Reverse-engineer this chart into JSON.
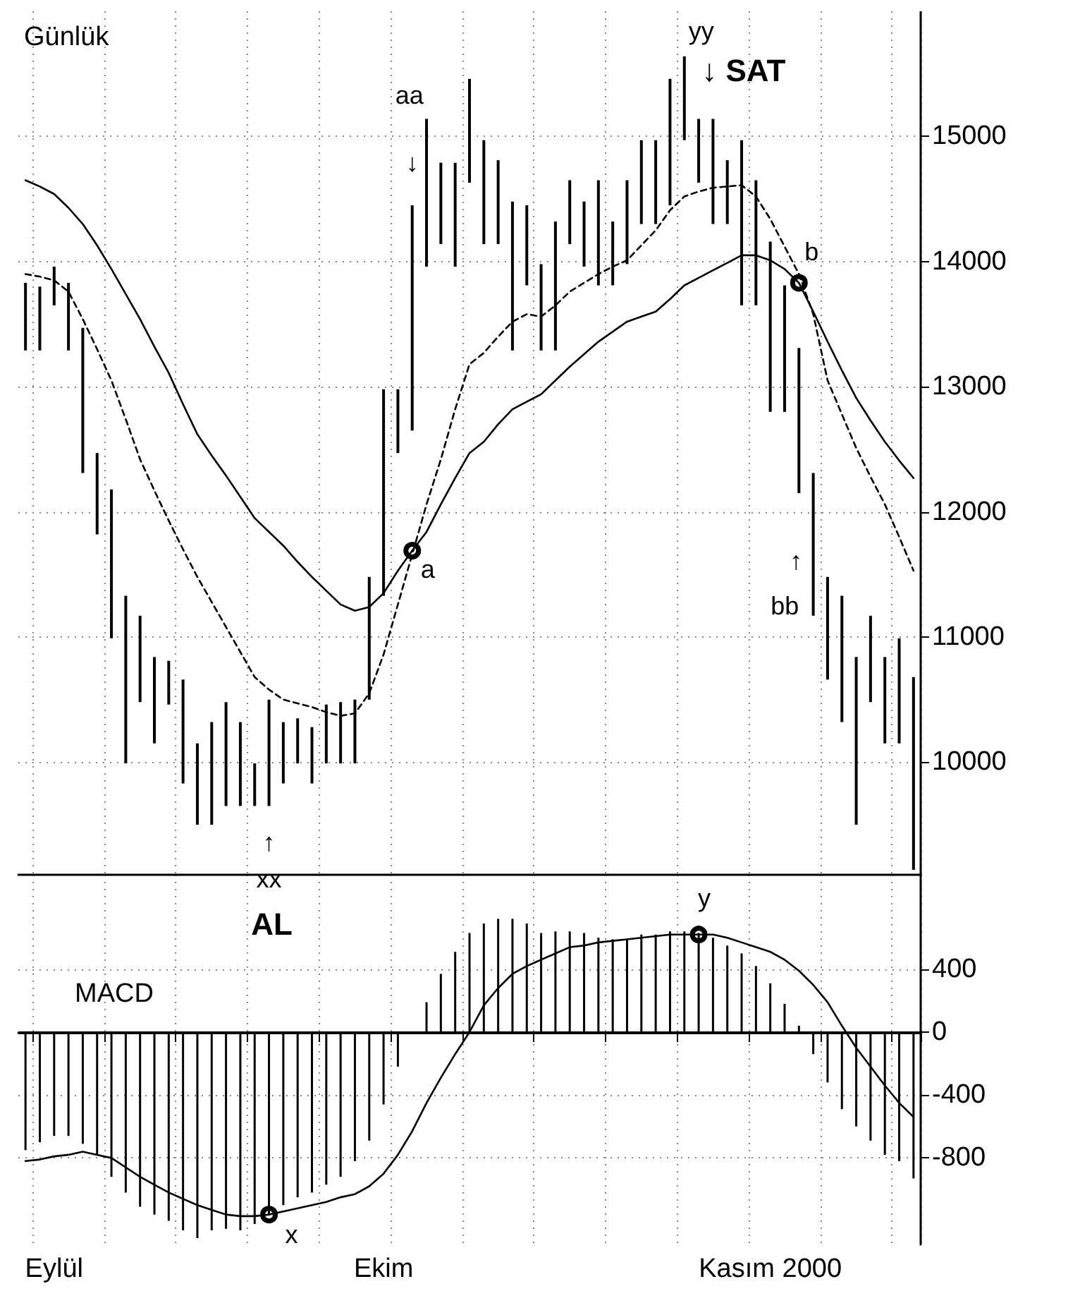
{
  "chart_data": [
    {
      "type": "bar",
      "title": "Günlük",
      "categories": [
        null,
        null,
        null,
        null,
        null,
        null,
        null,
        null,
        null,
        null,
        null,
        null,
        null,
        null,
        null,
        null,
        null,
        null,
        null,
        null,
        null,
        null,
        null,
        null,
        null,
        null,
        null,
        null,
        null,
        null,
        null,
        null,
        null,
        null,
        null,
        null,
        null,
        null,
        null,
        null,
        null,
        null,
        null,
        null,
        null,
        null,
        null,
        null,
        null,
        null,
        null,
        null,
        null,
        null,
        null,
        null,
        null,
        null,
        null,
        null,
        null,
        null,
        null
      ],
      "series": [
        {
          "color": "#000000",
          "base": [
            13290,
            13290,
            13650,
            13290,
            12310,
            11820,
            10990,
            9990,
            10480,
            10150,
            10460,
            9830,
            9500,
            9500,
            9650,
            9650,
            9650,
            9650,
            9830,
            9990,
            9830,
            9990,
            9990,
            9990,
            10500,
            11330,
            12470,
            12650,
            13960,
            14140,
            13960,
            14630,
            14140,
            14140,
            13290,
            13810,
            13290,
            13290,
            14140,
            13960,
            13810,
            13810,
            13980,
            14300,
            14300,
            14450,
            14970,
            14630,
            14300,
            14300,
            13650,
            13650,
            12800,
            12800,
            12150,
            11170,
            10660,
            10320,
            9500,
            10480,
            10150,
            10150,
            9140
          ],
          "values": [
            540,
            510,
            310,
            540,
            1160,
            650,
            1190,
            1340,
            690,
            690,
            350,
            830,
            650,
            820,
            830,
            670,
            340,
            850,
            490,
            360,
            450,
            470,
            490,
            510,
            980,
            1650,
            510,
            1800,
            1180,
            650,
            830,
            830,
            830,
            670,
            1190,
            640,
            690,
            1030,
            510,
            520,
            840,
            510,
            670,
            670,
            670,
            1010,
            670,
            510,
            840,
            510,
            1320,
            1000,
            1360,
            1010,
            1160,
            1140,
            820,
            1010,
            1340,
            690,
            690,
            840,
            1540
          ]
        },
        {
          "type": "line",
          "color": "#000000",
          "line_style": "solid",
          "values": [
            14650,
            14600,
            14540,
            14430,
            14300,
            14130,
            13940,
            13740,
            13540,
            13320,
            13110,
            12860,
            12620,
            12450,
            12290,
            12120,
            11950,
            11840,
            11730,
            11600,
            11480,
            11370,
            11260,
            11210,
            11240,
            11350,
            11530,
            11690,
            11840,
            12060,
            12270,
            12470,
            12560,
            12700,
            12820,
            12880,
            12940,
            13050,
            13160,
            13260,
            13360,
            13440,
            13520,
            13560,
            13600,
            13700,
            13810,
            13870,
            13930,
            13990,
            14050,
            14050,
            14010,
            13940,
            13830,
            13600,
            13360,
            13130,
            12910,
            12730,
            12560,
            12410,
            12270
          ]
        },
        {
          "type": "line",
          "color": "#000000",
          "line_style": "dashed",
          "values": [
            13900,
            13880,
            13850,
            13760,
            13540,
            13300,
            13050,
            12740,
            12420,
            12170,
            11930,
            11700,
            11480,
            11280,
            11080,
            10880,
            10680,
            10580,
            10500,
            10470,
            10440,
            10400,
            10370,
            10390,
            10550,
            10860,
            11260,
            11660,
            12060,
            12420,
            12820,
            13180,
            13270,
            13400,
            13520,
            13580,
            13560,
            13650,
            13760,
            13830,
            13900,
            13960,
            14010,
            14130,
            14250,
            14410,
            14520,
            14560,
            14590,
            14600,
            14610,
            14520,
            14340,
            14120,
            13900,
            13580,
            13050,
            12780,
            12510,
            12280,
            12060,
            11800,
            11530
          ]
        }
      ],
      "ylim": [
        9100,
        16000
      ],
      "yticks": [
        10000,
        11000,
        12000,
        13000,
        14000,
        15000
      ],
      "grid": true,
      "tick_labels": "y",
      "marker": "none",
      "annotations": [
        "yy",
        "↓ SAT",
        "aa",
        "↓",
        "a",
        "b",
        "↑",
        "bb",
        "↑",
        "xx",
        "AL"
      ]
    },
    {
      "type": "bar",
      "title": "MACD",
      "categories": [
        null,
        null,
        "Eylül",
        null,
        null,
        null,
        null,
        null,
        null,
        null,
        null,
        null,
        null,
        null,
        null,
        null,
        null,
        null,
        null,
        null,
        null,
        null,
        null,
        null,
        null,
        "Ekim",
        null,
        null,
        null,
        null,
        null,
        null,
        null,
        null,
        null,
        null,
        null,
        null,
        null,
        null,
        null,
        null,
        null,
        null,
        null,
        null,
        null,
        null,
        null,
        null,
        null,
        null,
        "Kasım 2000",
        null,
        null,
        null,
        null,
        null,
        null,
        null,
        null,
        null,
        null
      ],
      "series": [
        {
          "color": "#000000",
          "values": [
            -750,
            -700,
            -660,
            -660,
            -710,
            -780,
            -920,
            -1020,
            -1110,
            -1160,
            -1200,
            -1260,
            -1310,
            -1260,
            -1250,
            -1260,
            -1220,
            -1160,
            -1100,
            -1050,
            -1020,
            -970,
            -920,
            -820,
            -690,
            -460,
            -220,
            0,
            190,
            370,
            510,
            630,
            690,
            720,
            720,
            690,
            630,
            640,
            640,
            630,
            600,
            590,
            590,
            620,
            620,
            640,
            640,
            630,
            600,
            550,
            500,
            420,
            310,
            180,
            40,
            -140,
            -320,
            -490,
            -600,
            -690,
            -780,
            -820,
            -930
          ]
        },
        {
          "type": "line",
          "color": "#000000",
          "line_style": "solid",
          "values": [
            -820,
            -810,
            -790,
            -780,
            -760,
            -780,
            -800,
            -860,
            -920,
            -970,
            -1020,
            -1060,
            -1100,
            -1130,
            -1160,
            -1170,
            -1170,
            -1160,
            -1140,
            -1120,
            -1100,
            -1080,
            -1050,
            -1030,
            -980,
            -900,
            -780,
            -630,
            -450,
            -290,
            -140,
            0,
            170,
            280,
            370,
            420,
            460,
            500,
            540,
            550,
            570,
            580,
            590,
            600,
            610,
            620,
            620,
            620,
            620,
            600,
            570,
            540,
            510,
            460,
            390,
            300,
            190,
            40,
            -100,
            -220,
            -340,
            -450,
            -540
          ]
        }
      ],
      "ylim": [
        -1350,
        1000
      ],
      "yticks": [
        400,
        0,
        -400,
        -800
      ],
      "grid": true,
      "marker": "none",
      "ref_lines": [
        {
          "axis": "y",
          "value": 0,
          "color": "#000000",
          "line_style": "solid"
        }
      ],
      "annotations": [
        "x",
        "y"
      ]
    }
  ]
}
